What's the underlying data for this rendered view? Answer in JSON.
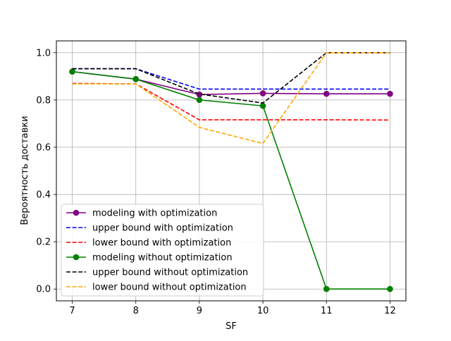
{
  "chart_data": {
    "type": "line",
    "title": "",
    "xlabel": "SF",
    "ylabel": "Вероятность доставки",
    "x": [
      7,
      8,
      9,
      10,
      11,
      12
    ],
    "xlim": [
      6.75,
      12.25
    ],
    "ylim": [
      -0.05,
      1.05
    ],
    "xticks": [
      "7",
      "8",
      "9",
      "10",
      "11",
      "12"
    ],
    "yticks": [
      "0.0",
      "0.2",
      "0.4",
      "0.6",
      "0.8",
      "1.0"
    ],
    "grid": true,
    "legend_position": "lower-left",
    "series": [
      {
        "name": "modeling with optimization",
        "color": "#800080",
        "style": "solid",
        "marker": "circle",
        "values": [
          0.92,
          0.888,
          0.823,
          0.828,
          0.826,
          0.826
        ]
      },
      {
        "name": "upper bound with optimization",
        "color": "#0000ff",
        "style": "dashed",
        "marker": "none",
        "values": [
          0.932,
          0.932,
          0.846,
          0.846,
          0.846,
          0.846
        ]
      },
      {
        "name": "lower bound with optimization",
        "color": "#ff0000",
        "style": "dashed",
        "marker": "none",
        "values": [
          0.87,
          0.868,
          0.716,
          0.716,
          0.716,
          0.715
        ]
      },
      {
        "name": "modeling without optimization",
        "color": "#008000",
        "style": "solid",
        "marker": "circle",
        "values": [
          0.92,
          0.888,
          0.8,
          0.775,
          0.0,
          0.0
        ]
      },
      {
        "name": "upper bound without optimization",
        "color": "#000000",
        "style": "dashed",
        "marker": "none",
        "values": [
          0.932,
          0.932,
          0.825,
          0.787,
          1.0,
          1.0
        ]
      },
      {
        "name": "lower bound without optimization",
        "color": "#ffa500",
        "style": "dashed",
        "marker": "none",
        "values": [
          0.868,
          0.868,
          0.684,
          0.616,
          1.0,
          1.0
        ]
      }
    ]
  }
}
